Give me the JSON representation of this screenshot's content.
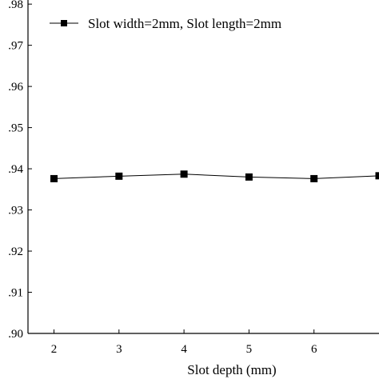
{
  "chart_data": {
    "type": "line",
    "title": "",
    "xlabel": "Slot depth (mm)",
    "ylabel": "",
    "x": [
      2,
      3,
      4,
      5,
      6,
      7
    ],
    "x_ticks": [
      2,
      3,
      4,
      5,
      6
    ],
    "y_ticks": [
      0.9,
      0.91,
      0.92,
      0.93,
      0.94,
      0.95,
      0.96,
      0.97,
      0.98
    ],
    "y_tick_labels": [
      ".90",
      ".91",
      ".92",
      ".93",
      ".94",
      ".95",
      ".96",
      ".97",
      ".98"
    ],
    "xlim": [
      1.6,
      7.0
    ],
    "ylim": [
      0.9,
      0.981
    ],
    "grid": false,
    "legend_position": "top-left",
    "series": [
      {
        "name": "Slot width=2mm, Slot length=2mm",
        "x": [
          2,
          3,
          4,
          5,
          6,
          7
        ],
        "values": [
          0.9376,
          0.9382,
          0.9387,
          0.938,
          0.9376,
          0.9383
        ],
        "marker": "square",
        "color": "#000000"
      }
    ]
  }
}
